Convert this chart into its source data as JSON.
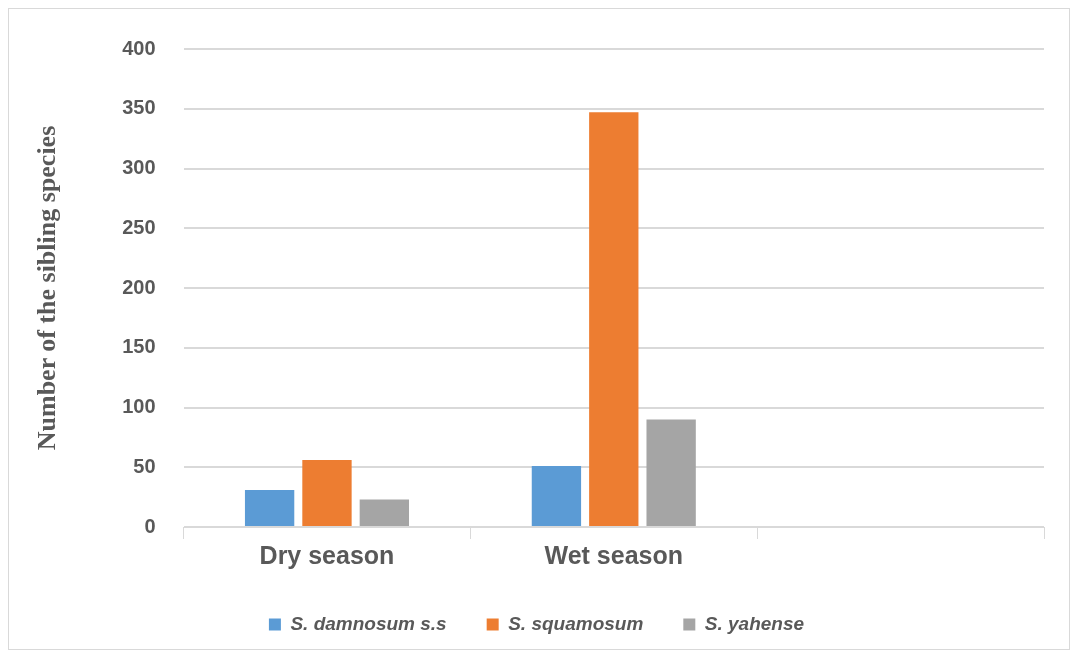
{
  "chart_data": {
    "type": "bar",
    "ylabel": "Number of the sibling species",
    "categories": [
      "Dry season",
      "Wet season",
      null
    ],
    "series": [
      {
        "name": "S. damnosum s.s",
        "color": "#5b9bd5",
        "values": [
          31,
          51,
          null
        ]
      },
      {
        "name": "S. squamosum",
        "color": "#ed7d31",
        "values": [
          56,
          347,
          null
        ]
      },
      {
        "name": "S. yahense",
        "color": "#a5a5a5",
        "values": [
          23,
          90,
          null
        ]
      }
    ],
    "ylim": [
      0,
      400
    ],
    "yticks": [
      0,
      50,
      100,
      150,
      200,
      250,
      300,
      350,
      400
    ],
    "grid": "y",
    "legend": "bottom"
  }
}
